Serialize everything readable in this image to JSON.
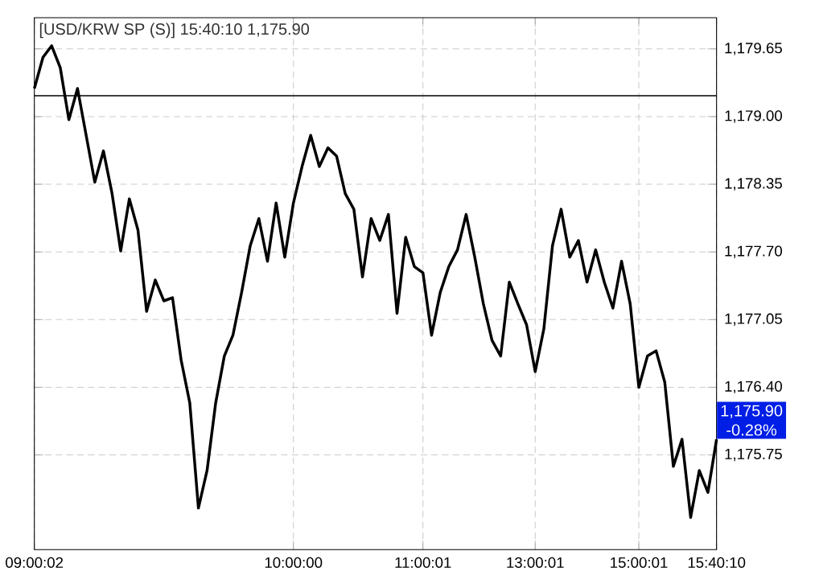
{
  "chart_data": {
    "type": "line",
    "title": "[USD/KRW SP (S)] 15:40:10  1,175.90",
    "categories": [
      "09:00:02",
      null,
      null,
      null,
      null,
      null,
      null,
      null,
      null,
      null,
      null,
      null,
      null,
      null,
      null,
      null,
      null,
      null,
      null,
      null,
      null,
      null,
      null,
      null,
      null,
      null,
      null,
      null,
      null,
      null,
      "10:00:00",
      null,
      null,
      null,
      null,
      null,
      null,
      null,
      null,
      null,
      null,
      null,
      null,
      null,
      null,
      "11:00:01",
      null,
      null,
      null,
      null,
      null,
      null,
      null,
      null,
      null,
      null,
      null,
      null,
      "13:00:01",
      null,
      null,
      null,
      null,
      null,
      null,
      null,
      null,
      null,
      null,
      null,
      "15:00:01",
      null,
      null,
      null,
      null,
      null,
      null,
      null,
      null,
      "15:40:10"
    ],
    "series": [
      {
        "color": "#000000",
        "values": [
          1179.27,
          1179.57,
          1179.68,
          1179.47,
          1178.97,
          1179.27,
          1178.82,
          1178.37,
          1178.67,
          1178.26,
          1177.71,
          1178.21,
          1177.91,
          1177.13,
          1177.43,
          1177.23,
          1177.26,
          1176.66,
          1176.25,
          1175.24,
          1175.6,
          1176.25,
          1176.7,
          1176.9,
          1177.31,
          1177.76,
          1178.02,
          1177.61,
          1178.17,
          1177.65,
          1178.17,
          1178.52,
          1178.82,
          1178.52,
          1178.7,
          1178.62,
          1178.26,
          1178.11,
          1177.46,
          1178.02,
          1177.81,
          1178.06,
          1177.11,
          1177.84,
          1177.56,
          1177.5,
          1176.9,
          1177.31,
          1177.56,
          1177.72,
          1178.06,
          1177.65,
          1177.2,
          1176.85,
          1176.7,
          1177.41,
          1177.2,
          1177.0,
          1176.55,
          1176.96,
          1177.76,
          1178.11,
          1177.65,
          1177.81,
          1177.41,
          1177.72,
          1177.41,
          1177.16,
          1177.61,
          1177.2,
          1176.4,
          1176.7,
          1176.75,
          1176.45,
          1175.64,
          1175.9,
          1175.15,
          1175.6,
          1175.39,
          1175.9
        ]
      }
    ],
    "ylim": [
      1174.84,
      1179.95
    ],
    "yticks": [
      {
        "value": 1175.75,
        "label": "1,175.75"
      },
      {
        "value": 1176.4,
        "label": "1,176.40"
      },
      {
        "value": 1177.05,
        "label": "1,177.05"
      },
      {
        "value": 1177.7,
        "label": "1,177.70"
      },
      {
        "value": 1178.35,
        "label": "1,178.35"
      },
      {
        "value": 1179.0,
        "label": "1,179.00"
      },
      {
        "value": 1179.65,
        "label": "1,179.65"
      }
    ],
    "grid": true,
    "ref_lines": [
      {
        "axis": "y",
        "value": 1179.2,
        "color": "#000000"
      }
    ],
    "annotations": [
      "1,175.90",
      "-0.28%"
    ]
  }
}
